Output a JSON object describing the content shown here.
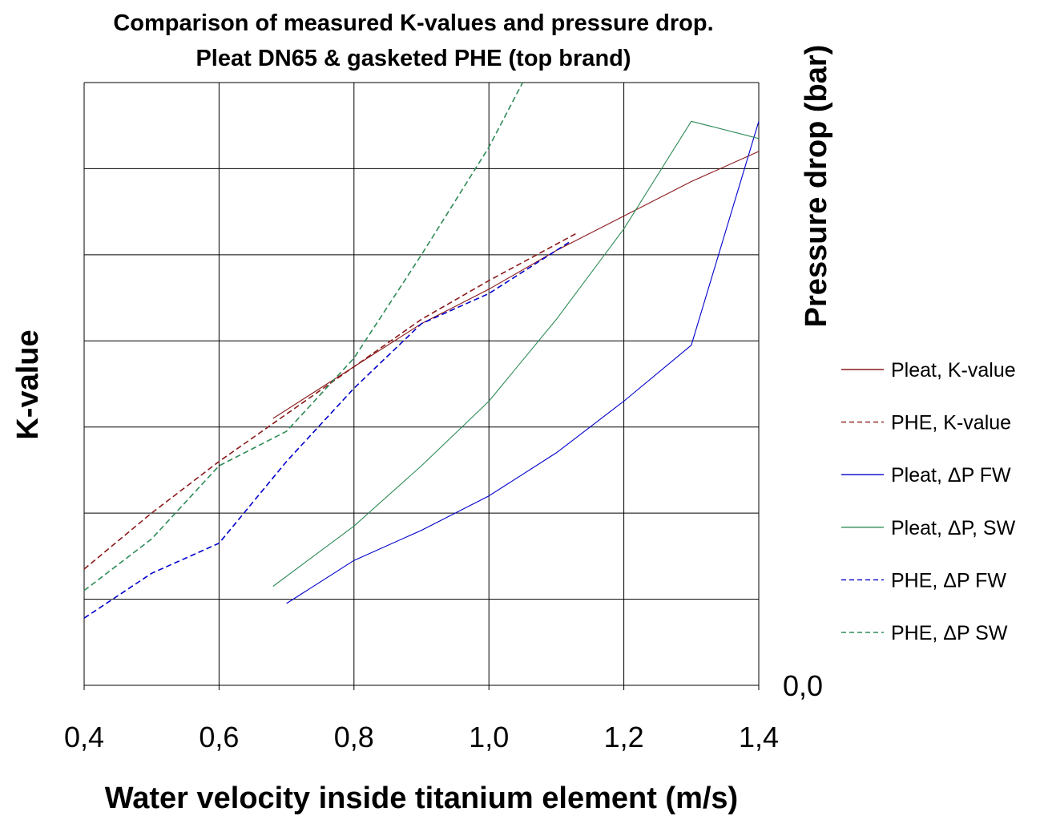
{
  "chart_data": {
    "type": "line",
    "title_lines": [
      "Comparison of measured K-values and pressure drop.",
      "Pleat DN65 & gasketed PHE (top brand)"
    ],
    "xlabel": "Water velocity inside titanium element (m/s)",
    "ylabel": "K-value",
    "y2label": "Pressure drop (bar)",
    "xlim": [
      0.4,
      1.4
    ],
    "x_ticks": [
      "0,4",
      "0,6",
      "0,8",
      "1,0",
      "1,2",
      "1,4"
    ],
    "x_tick_values": [
      0.4,
      0.6,
      0.8,
      1.0,
      1.2,
      1.4
    ],
    "ylim": [
      0,
      7
    ],
    "y_gridlines": 7,
    "y2_tick_label": "0,0",
    "grid": true,
    "legend_position": "right",
    "series": [
      {
        "name": "Pleat, K-value",
        "color": "#8b1a1a",
        "dash": "solid",
        "x": [
          0.68,
          0.8,
          0.9,
          1.0,
          1.1,
          1.2,
          1.3,
          1.4
        ],
        "y": [
          3.1,
          3.7,
          4.2,
          4.6,
          5.05,
          5.45,
          5.85,
          6.2
        ]
      },
      {
        "name": "PHE, K-value",
        "color": "#8b1a1a",
        "dash": "dashed",
        "x": [
          0.4,
          0.5,
          0.6,
          0.7,
          0.8,
          0.9,
          1.0,
          1.13
        ],
        "y": [
          1.35,
          2.0,
          2.6,
          3.15,
          3.7,
          4.25,
          4.7,
          5.25
        ]
      },
      {
        "name": "Pleat, ΔP FW",
        "color": "#0000cc",
        "dash": "solid",
        "x": [
          0.7,
          0.8,
          0.9,
          1.0,
          1.1,
          1.2,
          1.3,
          1.4
        ],
        "y": [
          0.95,
          1.45,
          1.8,
          2.2,
          2.7,
          3.3,
          3.95,
          6.55
        ]
      },
      {
        "name": "Pleat, ΔP, SW",
        "color": "#2e8b57",
        "dash": "solid",
        "x": [
          0.68,
          0.8,
          0.9,
          1.0,
          1.1,
          1.2,
          1.3,
          1.4
        ],
        "y": [
          1.15,
          1.85,
          2.55,
          3.3,
          4.25,
          5.3,
          6.55,
          6.35
        ]
      },
      {
        "name": "PHE, ΔP FW",
        "color": "#0000cc",
        "dash": "dashed",
        "x": [
          0.4,
          0.5,
          0.6,
          0.7,
          0.8,
          0.9,
          1.0,
          1.12
        ],
        "y": [
          0.78,
          1.3,
          1.65,
          2.6,
          3.45,
          4.2,
          4.55,
          5.15
        ]
      },
      {
        "name": "PHE, ΔP SW",
        "color": "#2e8b57",
        "dash": "dashed",
        "x": [
          0.4,
          0.5,
          0.6,
          0.7,
          0.8,
          0.9,
          1.0,
          1.05
        ],
        "y": [
          1.1,
          1.7,
          2.55,
          2.95,
          3.8,
          5.0,
          6.25,
          7.0
        ]
      }
    ]
  }
}
